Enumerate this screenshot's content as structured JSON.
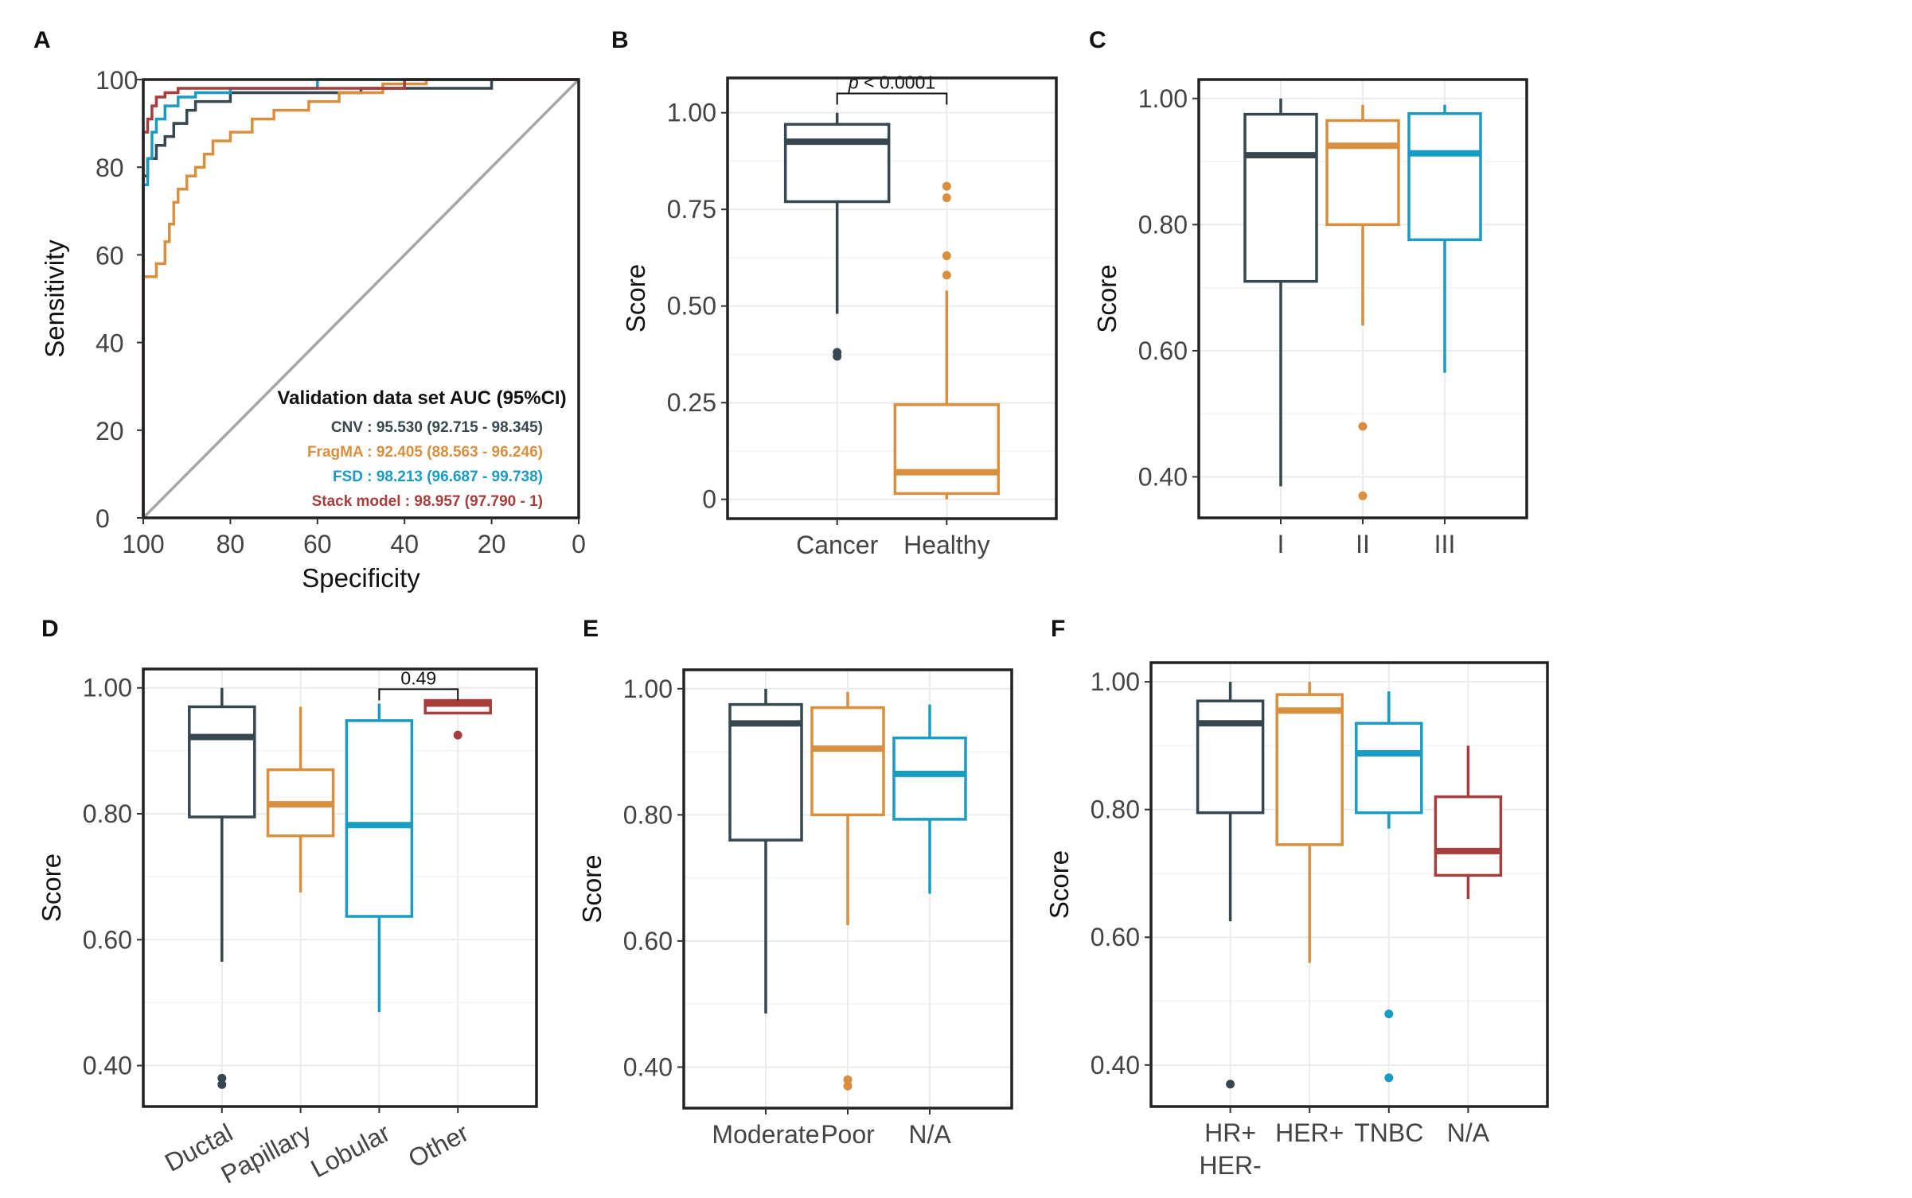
{
  "chart_data": [
    {
      "panel": "A",
      "type": "line",
      "subtype": "roc",
      "xlabel": "Specificity",
      "ylabel": "Sensitivity",
      "xlim": [
        100,
        0
      ],
      "ylim": [
        0,
        100
      ],
      "x_ticks": [
        "100",
        "80",
        "60",
        "40",
        "20",
        "0"
      ],
      "y_ticks": [
        "100",
        "80",
        "60",
        "40",
        "20",
        "0"
      ],
      "legend_title": "Validation data set AUC (95%CI)",
      "legend_position": "bottom-right",
      "series": [
        {
          "name": "CNV",
          "label": "CNV : 95.530 (92.715 - 98.345)",
          "color": "#36474f",
          "points": [
            [
              100,
              0
            ],
            [
              100,
              78
            ],
            [
              99,
              78
            ],
            [
              99,
              82
            ],
            [
              97,
              82
            ],
            [
              97,
              85
            ],
            [
              95,
              85
            ],
            [
              95,
              87
            ],
            [
              93,
              87
            ],
            [
              93,
              90
            ],
            [
              90,
              90
            ],
            [
              90,
              93
            ],
            [
              88,
              93
            ],
            [
              88,
              95
            ],
            [
              80,
              95
            ],
            [
              80,
              97
            ],
            [
              50,
              97
            ],
            [
              50,
              98
            ],
            [
              20,
              98
            ],
            [
              20,
              100
            ],
            [
              0,
              100
            ]
          ]
        },
        {
          "name": "FragMA",
          "label": "FragMA : 92.405 (88.563 - 96.246)",
          "color": "#d98f3e",
          "points": [
            [
              100,
              0
            ],
            [
              100,
              55
            ],
            [
              97,
              55
            ],
            [
              97,
              58
            ],
            [
              95,
              58
            ],
            [
              95,
              63
            ],
            [
              94,
              63
            ],
            [
              94,
              67
            ],
            [
              93,
              67
            ],
            [
              93,
              72
            ],
            [
              92,
              72
            ],
            [
              92,
              75
            ],
            [
              90,
              75
            ],
            [
              90,
              78
            ],
            [
              88,
              78
            ],
            [
              88,
              80
            ],
            [
              86,
              80
            ],
            [
              86,
              83
            ],
            [
              84,
              83
            ],
            [
              84,
              86
            ],
            [
              80,
              86
            ],
            [
              80,
              88
            ],
            [
              75,
              88
            ],
            [
              75,
              91
            ],
            [
              70,
              91
            ],
            [
              70,
              93
            ],
            [
              62,
              93
            ],
            [
              62,
              95
            ],
            [
              55,
              95
            ],
            [
              55,
              97
            ],
            [
              45,
              97
            ],
            [
              45,
              99
            ],
            [
              35,
              99
            ],
            [
              35,
              100
            ],
            [
              0,
              100
            ]
          ]
        },
        {
          "name": "FSD",
          "label": "FSD : 98.213 (96.687 - 99.738)",
          "color": "#1a9bc4",
          "points": [
            [
              100,
              0
            ],
            [
              100,
              76
            ],
            [
              99,
              76
            ],
            [
              99,
              82
            ],
            [
              98,
              82
            ],
            [
              98,
              88
            ],
            [
              97,
              88
            ],
            [
              97,
              91
            ],
            [
              95,
              91
            ],
            [
              95,
              94
            ],
            [
              92,
              94
            ],
            [
              92,
              96
            ],
            [
              88,
              96
            ],
            [
              88,
              97
            ],
            [
              80,
              97
            ],
            [
              80,
              98
            ],
            [
              60,
              98
            ],
            [
              60,
              100
            ],
            [
              0,
              100
            ]
          ]
        },
        {
          "name": "Stack model",
          "label": "Stack model : 98.957 (97.790 - 1)",
          "color": "#a83d3d",
          "points": [
            [
              100,
              0
            ],
            [
              100,
              88
            ],
            [
              99,
              88
            ],
            [
              99,
              91
            ],
            [
              98,
              91
            ],
            [
              98,
              94
            ],
            [
              97,
              94
            ],
            [
              97,
              96
            ],
            [
              95,
              96
            ],
            [
              95,
              97
            ],
            [
              92,
              97
            ],
            [
              92,
              98
            ],
            [
              40,
              98
            ],
            [
              40,
              100
            ],
            [
              0,
              100
            ]
          ]
        }
      ]
    },
    {
      "panel": "B",
      "type": "box",
      "ylabel": "Score",
      "ylim": [
        -0.05,
        1.09
      ],
      "y_ticks": [
        {
          "v": 0,
          "t": "0"
        },
        {
          "v": 0.25,
          "t": "0.25"
        },
        {
          "v": 0.5,
          "t": "0.50"
        },
        {
          "v": 0.75,
          "t": "0.75"
        },
        {
          "v": 1.0,
          "t": "1.00"
        }
      ],
      "boxes": [
        {
          "cat": "Cancer",
          "color": "#36474f",
          "min": 0.48,
          "q1": 0.77,
          "median": 0.925,
          "q3": 0.97,
          "max": 1.0,
          "outliers": [
            0.37,
            0.38
          ]
        },
        {
          "cat": "Healthy",
          "color": "#d98f3e",
          "min": 0.0,
          "q1": 0.015,
          "median": 0.07,
          "q3": 0.245,
          "max": 0.54,
          "outliers": [
            0.58,
            0.63,
            0.78,
            0.81
          ]
        }
      ],
      "brackets": [
        {
          "from": 0,
          "to": 1,
          "y": 1.05,
          "prefix": "p",
          "label": " < 0.0001"
        }
      ]
    },
    {
      "panel": "C",
      "type": "box",
      "ylabel": "Score",
      "ylim": [
        0.335,
        1.03
      ],
      "y_ticks": [
        {
          "v": 0.4,
          "t": "0.40"
        },
        {
          "v": 0.6,
          "t": "0.60"
        },
        {
          "v": 0.8,
          "t": "0.80"
        },
        {
          "v": 1.0,
          "t": "1.00"
        }
      ],
      "boxes": [
        {
          "cat": "I",
          "color": "#36474f",
          "min": 0.385,
          "q1": 0.71,
          "median": 0.91,
          "q3": 0.975,
          "max": 1.0,
          "outliers": []
        },
        {
          "cat": "II",
          "color": "#d98f3e",
          "min": 0.64,
          "q1": 0.8,
          "median": 0.925,
          "q3": 0.965,
          "max": 0.99,
          "outliers": [
            0.48,
            0.37
          ]
        },
        {
          "cat": "III",
          "color": "#1a9bc4",
          "min": 0.565,
          "q1": 0.776,
          "median": 0.913,
          "q3": 0.976,
          "max": 0.99,
          "outliers": []
        }
      ],
      "brackets": []
    },
    {
      "panel": "D",
      "type": "box",
      "ylabel": "Score",
      "ylim": [
        0.335,
        1.03
      ],
      "y_ticks": [
        {
          "v": 0.4,
          "t": "0.40"
        },
        {
          "v": 0.6,
          "t": "0.60"
        },
        {
          "v": 0.8,
          "t": "0.80"
        },
        {
          "v": 1.0,
          "t": "1.00"
        }
      ],
      "rotate_labels": true,
      "boxes": [
        {
          "cat": "Ductal",
          "color": "#36474f",
          "min": 0.565,
          "q1": 0.795,
          "median": 0.922,
          "q3": 0.97,
          "max": 1.0,
          "outliers": [
            0.37,
            0.38
          ]
        },
        {
          "cat": "Papillary",
          "color": "#d98f3e",
          "min": 0.675,
          "q1": 0.765,
          "median": 0.815,
          "q3": 0.87,
          "max": 0.97,
          "outliers": []
        },
        {
          "cat": "Lobular",
          "color": "#1a9bc4",
          "min": 0.485,
          "q1": 0.637,
          "median": 0.782,
          "q3": 0.948,
          "max": 0.975,
          "outliers": []
        },
        {
          "cat": "Other",
          "color": "#a83d3d",
          "min": 0.96,
          "q1": 0.96,
          "median": 0.975,
          "q3": 0.98,
          "max": 0.98,
          "outliers": [
            0.925
          ]
        }
      ],
      "brackets": [
        {
          "from": 2,
          "to": 3,
          "y": 0.998,
          "prefix": "",
          "label": "0.49"
        }
      ]
    },
    {
      "panel": "E",
      "type": "box",
      "ylabel": "Score",
      "ylim": [
        0.335,
        1.03
      ],
      "y_ticks": [
        {
          "v": 0.4,
          "t": "0.40"
        },
        {
          "v": 0.6,
          "t": "0.60"
        },
        {
          "v": 0.8,
          "t": "0.80"
        },
        {
          "v": 1.0,
          "t": "1.00"
        }
      ],
      "boxes": [
        {
          "cat": "Moderate",
          "color": "#36474f",
          "min": 0.485,
          "q1": 0.76,
          "median": 0.945,
          "q3": 0.975,
          "max": 1.0,
          "outliers": []
        },
        {
          "cat": "Poor",
          "color": "#d98f3e",
          "min": 0.625,
          "q1": 0.8,
          "median": 0.905,
          "q3": 0.97,
          "max": 0.995,
          "outliers": [
            0.37,
            0.38
          ]
        },
        {
          "cat": "N/A",
          "color": "#1a9bc4",
          "min": 0.675,
          "q1": 0.793,
          "median": 0.865,
          "q3": 0.922,
          "max": 0.975,
          "outliers": []
        }
      ],
      "brackets": []
    },
    {
      "panel": "F",
      "type": "box",
      "ylabel": "Score",
      "ylim": [
        0.335,
        1.03
      ],
      "y_ticks": [
        {
          "v": 0.4,
          "t": "0.40"
        },
        {
          "v": 0.6,
          "t": "0.60"
        },
        {
          "v": 0.8,
          "t": "0.80"
        },
        {
          "v": 1.0,
          "t": "1.00"
        }
      ],
      "boxes": [
        {
          "cat": "HR+ HER-",
          "color": "#36474f",
          "min": 0.625,
          "q1": 0.795,
          "median": 0.935,
          "q3": 0.97,
          "max": 1.0,
          "outliers": [
            0.37
          ]
        },
        {
          "cat": "HER+",
          "color": "#d98f3e",
          "min": 0.56,
          "q1": 0.745,
          "median": 0.955,
          "q3": 0.98,
          "max": 1.0,
          "outliers": []
        },
        {
          "cat": "TNBC",
          "color": "#1a9bc4",
          "min": 0.77,
          "q1": 0.795,
          "median": 0.888,
          "q3": 0.935,
          "max": 0.985,
          "outliers": [
            0.48,
            0.38
          ]
        },
        {
          "cat": "N/A",
          "color": "#a83d3d",
          "min": 0.66,
          "q1": 0.697,
          "median": 0.735,
          "q3": 0.82,
          "max": 0.9,
          "outliers": []
        }
      ],
      "brackets": []
    }
  ]
}
